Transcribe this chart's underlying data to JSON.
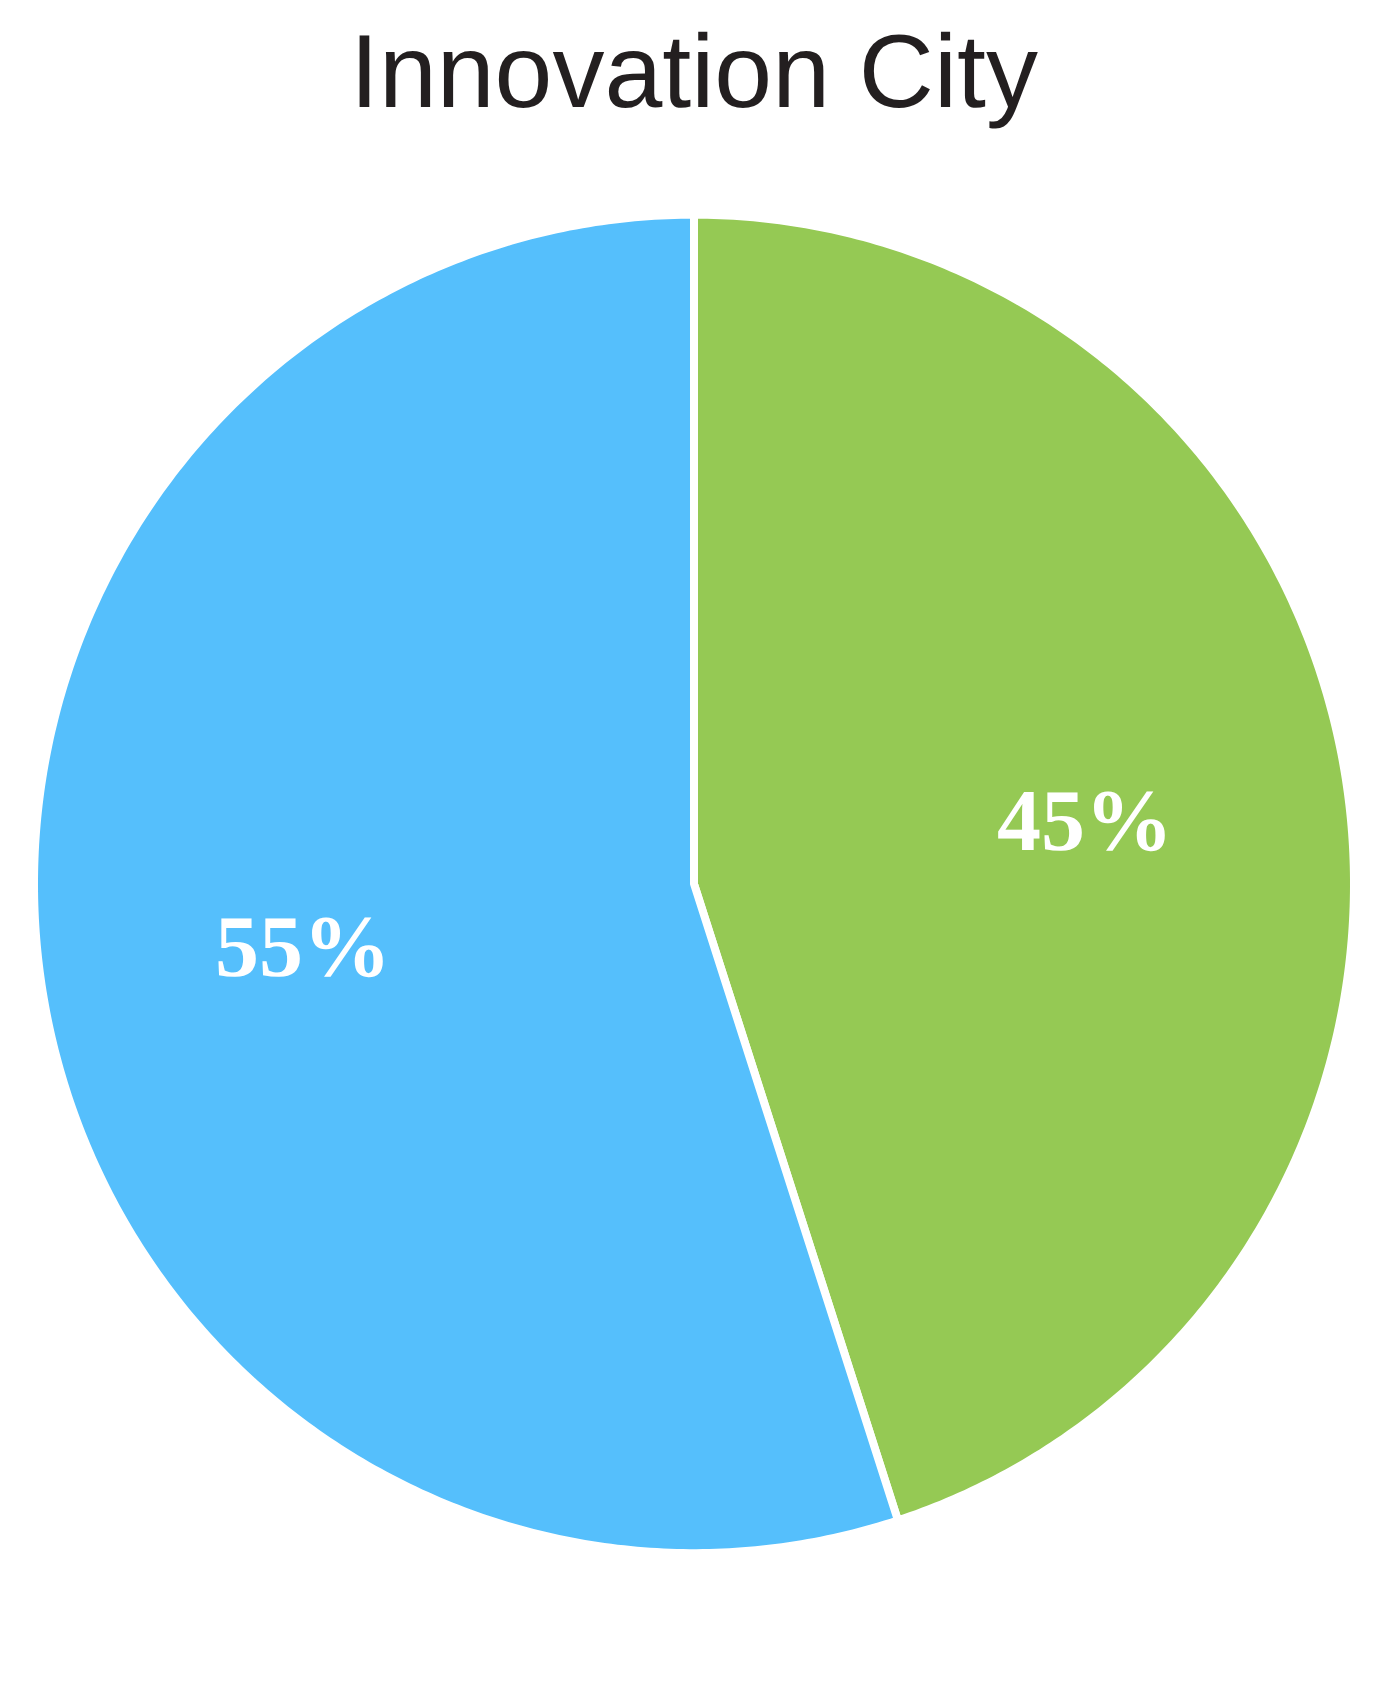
{
  "chart_data": {
    "type": "pie",
    "title": "Innovation City",
    "categories": [
      null,
      null
    ],
    "values": [
      45,
      55
    ],
    "colors": [
      "#95c954",
      "#55bffc"
    ],
    "value_labels": [
      "45%",
      "55%"
    ]
  }
}
